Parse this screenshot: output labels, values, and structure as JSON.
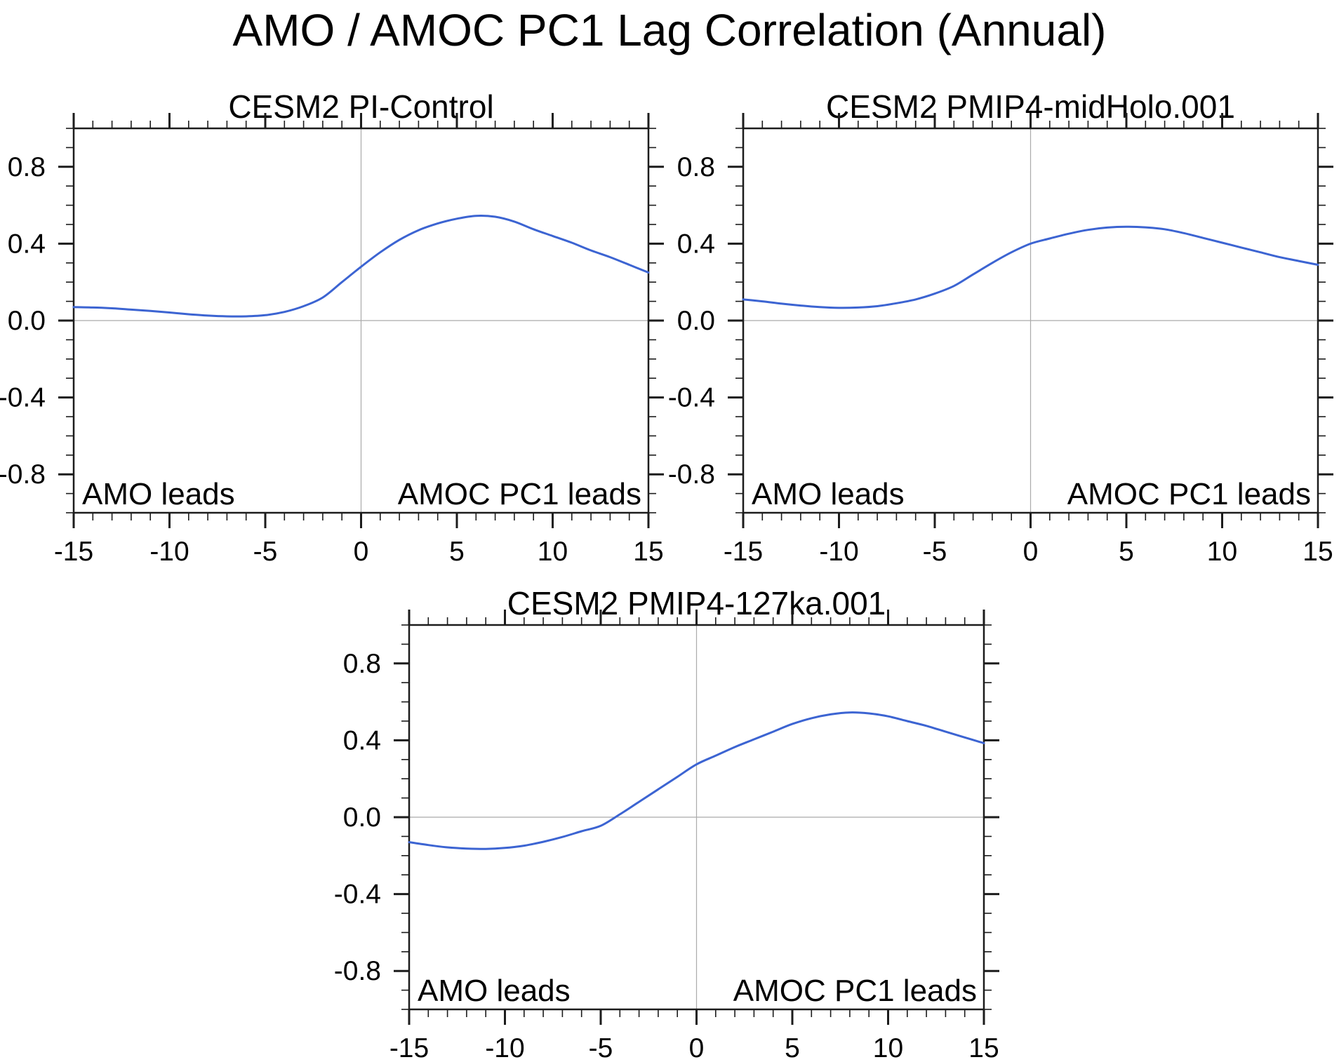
{
  "page": {
    "title": "AMO / AMOC PC1 Lag Correlation (Annual)"
  },
  "colors": {
    "line": "#3C64D2",
    "grid": "#ABABAB",
    "frame": "#1C1C1C",
    "text": "#000000"
  },
  "axes": {
    "xlim": [
      -15,
      15
    ],
    "ylim": [
      -1.0,
      1.0
    ],
    "x_major_ticks": [
      -15,
      -10,
      -5,
      0,
      5,
      10,
      15
    ],
    "x_tick_labels": [
      "-15",
      "-10",
      "-5",
      "0",
      "5",
      "10",
      "15"
    ],
    "x_minor_step": 1,
    "y_major_ticks": [
      0.8,
      0.4,
      0.0,
      -0.4,
      -0.8
    ],
    "y_tick_labels": [
      "0.8",
      "0.4",
      "0.0",
      "-0.4",
      "-0.8"
    ],
    "y_minor_step": 0.1,
    "left_annotation": "AMO leads",
    "right_annotation": "AMOC PC1 leads"
  },
  "chart_data": [
    {
      "type": "line",
      "title": "CESM2 PI-Control",
      "xlabel": "",
      "ylabel": "",
      "xlim": [
        -15,
        15
      ],
      "ylim": [
        -1.0,
        1.0
      ],
      "grid": "zero-lines-only",
      "legend": "none",
      "annotations": [
        "AMO leads",
        "AMOC PC1 leads"
      ],
      "x": [
        -15,
        -14,
        -13,
        -12,
        -11,
        -10,
        -9,
        -8,
        -7,
        -6,
        -5,
        -4,
        -3,
        -2,
        -1,
        0,
        1,
        2,
        3,
        4,
        5,
        6,
        7,
        8,
        9,
        10,
        11,
        12,
        13,
        14,
        15
      ],
      "values": [
        0.07,
        0.068,
        0.064,
        0.057,
        0.05,
        0.042,
        0.033,
        0.026,
        0.022,
        0.022,
        0.028,
        0.045,
        0.075,
        0.12,
        0.2,
        0.28,
        0.355,
        0.42,
        0.47,
        0.505,
        0.53,
        0.545,
        0.54,
        0.515,
        0.475,
        0.44,
        0.405,
        0.365,
        0.33,
        0.29,
        0.25
      ]
    },
    {
      "type": "line",
      "title": "CESM2 PMIP4-midHolo.001",
      "xlabel": "",
      "ylabel": "",
      "xlim": [
        -15,
        15
      ],
      "ylim": [
        -1.0,
        1.0
      ],
      "grid": "zero-lines-only",
      "legend": "none",
      "annotations": [
        "AMO leads",
        "AMOC PC1 leads"
      ],
      "x": [
        -15,
        -14,
        -13,
        -12,
        -11,
        -10,
        -9,
        -8,
        -7,
        -6,
        -5,
        -4,
        -3,
        -2,
        -1,
        0,
        1,
        2,
        3,
        4,
        5,
        6,
        7,
        8,
        9,
        10,
        11,
        12,
        13,
        14,
        15
      ],
      "values": [
        0.11,
        0.1,
        0.088,
        0.078,
        0.07,
        0.066,
        0.068,
        0.075,
        0.09,
        0.11,
        0.14,
        0.18,
        0.24,
        0.3,
        0.355,
        0.4,
        0.427,
        0.452,
        0.472,
        0.484,
        0.488,
        0.485,
        0.475,
        0.455,
        0.43,
        0.405,
        0.38,
        0.355,
        0.33,
        0.31,
        0.29
      ]
    },
    {
      "type": "line",
      "title": "CESM2 PMIP4-127ka.001",
      "xlabel": "",
      "ylabel": "",
      "xlim": [
        -15,
        15
      ],
      "ylim": [
        -1.0,
        1.0
      ],
      "grid": "zero-lines-only",
      "legend": "none",
      "annotations": [
        "AMO leads",
        "AMOC PC1 leads"
      ],
      "x": [
        -15,
        -14,
        -13,
        -12,
        -11,
        -10,
        -9,
        -8,
        -7,
        -6,
        -5,
        -4,
        -3,
        -2,
        -1,
        0,
        1,
        2,
        3,
        4,
        5,
        6,
        7,
        8,
        9,
        10,
        11,
        12,
        13,
        14,
        15
      ],
      "values": [
        -0.13,
        -0.145,
        -0.157,
        -0.163,
        -0.165,
        -0.16,
        -0.148,
        -0.128,
        -0.103,
        -0.073,
        -0.045,
        0.015,
        0.08,
        0.145,
        0.21,
        0.275,
        0.32,
        0.365,
        0.405,
        0.445,
        0.485,
        0.515,
        0.535,
        0.545,
        0.54,
        0.525,
        0.5,
        0.475,
        0.445,
        0.415,
        0.385
      ]
    }
  ]
}
